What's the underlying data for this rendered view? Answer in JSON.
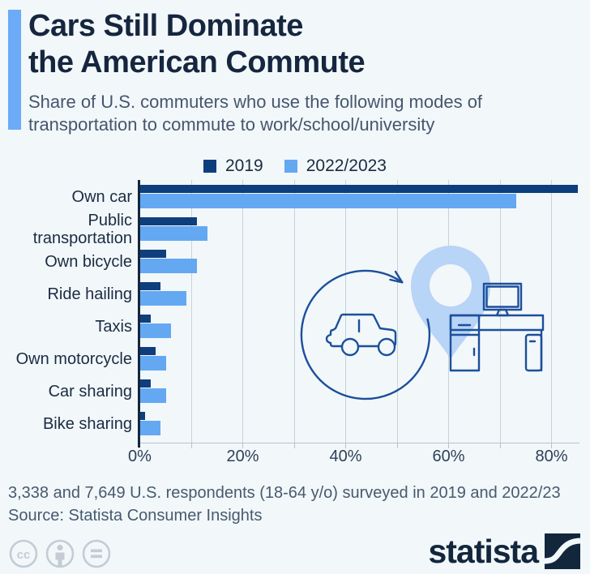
{
  "page": {
    "background": "#f2f7fa"
  },
  "header": {
    "title": {
      "line1": "Cars Still Dominate",
      "line2": "the American Commute"
    },
    "subtitle": {
      "line1": "Share of U.S. commuters who use the following modes of",
      "line2": "transportation to commute to work/school/university"
    },
    "accent_color": "#6babf8"
  },
  "legend": {
    "items": [
      {
        "label": "2019",
        "color": "#0f3e7d"
      },
      {
        "label": "2022/2023",
        "color": "#64a8f2"
      }
    ]
  },
  "chart_data": {
    "type": "bar",
    "orientation": "horizontal",
    "title": "Share of U.S. commuters who use the following modes of transportation to commute to work/school/university",
    "unit": "%",
    "categories": [
      "Own car",
      "Public transportation",
      "Own bicycle",
      "Ride hailing",
      "Taxis",
      "Own motorcycle",
      "Car sharing",
      "Bike sharing"
    ],
    "series": [
      {
        "name": "2019",
        "color": "#0f3e7d",
        "values": [
          85,
          11,
          5,
          4,
          2,
          3,
          2,
          1
        ]
      },
      {
        "name": "2022/2023",
        "color": "#64a8f2",
        "values": [
          73,
          13,
          11,
          9,
          6,
          5,
          5,
          4
        ]
      }
    ],
    "axis": {
      "xlim": [
        0,
        87
      ],
      "tick_values": [
        0,
        20,
        40,
        60,
        80
      ],
      "tick_labels": [
        "0%",
        "20%",
        "40%",
        "60%",
        "80%"
      ],
      "gridline_step": 10,
      "gridline_max": 80,
      "grid": true
    },
    "legend_position": "top"
  },
  "footer": {
    "note": "3,338 and 7,649 U.S. respondents (18-64 y/o) surveyed in 2019 and 2022/23",
    "source": "Source: Statista Consumer Insights"
  },
  "branding": {
    "logo_text": "statista",
    "logo_color": "#12263c"
  },
  "license": {
    "icons": [
      "cc-icon",
      "cc-by-icon",
      "cc-nd-icon"
    ],
    "color": "#c3ccd5"
  },
  "illustration": {
    "parts": [
      "circular-arrow-icon",
      "car-icon",
      "location-pin-icon",
      "desk-icon",
      "monitor-icon",
      "pc-tower-icon"
    ],
    "outline_color": "#1c4f9b",
    "pin_color": "#b8d4f6"
  }
}
